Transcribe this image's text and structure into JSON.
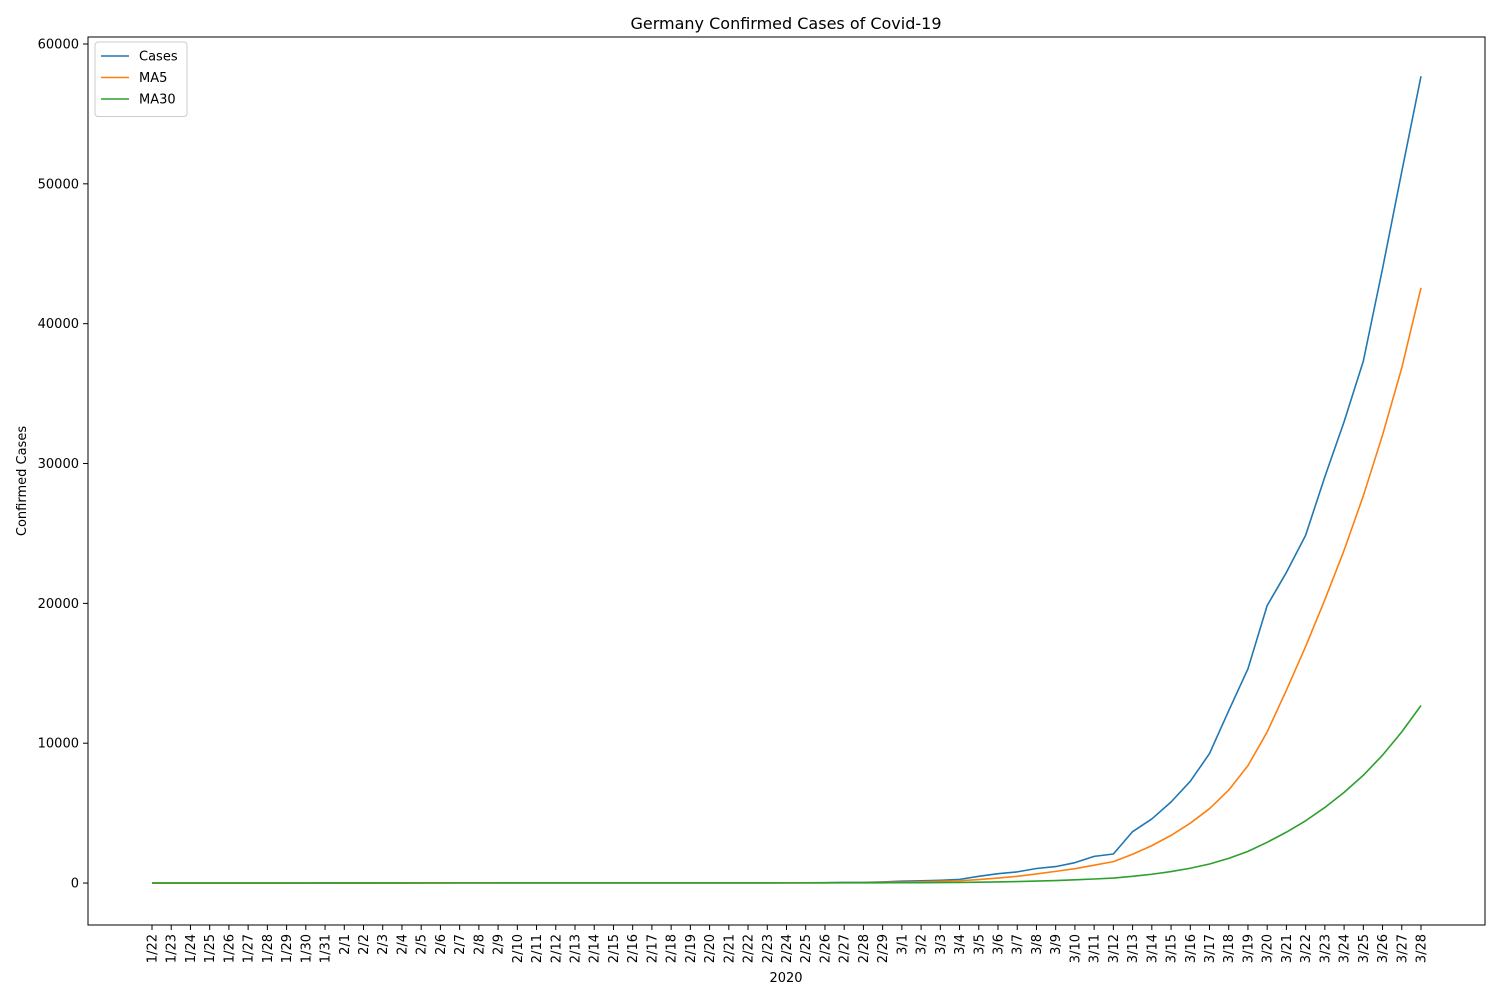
{
  "chart_data": {
    "type": "line",
    "title": "Germany Confirmed Cases of Covid-19",
    "xlabel": "2020",
    "ylabel": "Confirmed Cases",
    "ylim": [
      -3000,
      60500
    ],
    "yticks": [
      0,
      10000,
      20000,
      30000,
      40000,
      50000,
      60000
    ],
    "grid": false,
    "legend_position": "top-left",
    "categories": [
      "1/22",
      "1/23",
      "1/24",
      "1/25",
      "1/26",
      "1/27",
      "1/28",
      "1/29",
      "1/30",
      "1/31",
      "2/1",
      "2/2",
      "2/3",
      "2/4",
      "2/5",
      "2/6",
      "2/7",
      "2/8",
      "2/9",
      "2/10",
      "2/11",
      "2/12",
      "2/13",
      "2/14",
      "2/15",
      "2/16",
      "2/17",
      "2/18",
      "2/19",
      "2/20",
      "2/21",
      "2/22",
      "2/23",
      "2/24",
      "2/25",
      "2/26",
      "2/27",
      "2/28",
      "2/29",
      "3/1",
      "3/2",
      "3/3",
      "3/4",
      "3/5",
      "3/6",
      "3/7",
      "3/8",
      "3/9",
      "3/10",
      "3/11",
      "3/12",
      "3/13",
      "3/14",
      "3/15",
      "3/16",
      "3/17",
      "3/18",
      "3/19",
      "3/20",
      "3/21",
      "3/22",
      "3/23",
      "3/24",
      "3/25",
      "3/26",
      "3/27",
      "3/28"
    ],
    "series": [
      {
        "name": "Cases",
        "color": "#1f77b4",
        "values": [
          0,
          0,
          0,
          0,
          0,
          1,
          4,
          4,
          4,
          5,
          8,
          10,
          12,
          12,
          12,
          12,
          13,
          13,
          14,
          14,
          16,
          16,
          16,
          16,
          16,
          16,
          16,
          16,
          16,
          16,
          16,
          16,
          16,
          16,
          17,
          27,
          46,
          48,
          79,
          130,
          159,
          196,
          262,
          482,
          670,
          799,
          1040,
          1176,
          1457,
          1908,
          2078,
          3675,
          4585,
          5795,
          7272,
          9257,
          12327,
          15320,
          19848,
          22213,
          24873,
          29056,
          32986,
          37323,
          43938,
          50871,
          57695
        ]
      },
      {
        "name": "MA5",
        "color": "#ff7f0e",
        "values": [
          0,
          0,
          0,
          0,
          0,
          0.2,
          1,
          1.8,
          2.6,
          3.6,
          5,
          6.2,
          7.8,
          9.4,
          10.8,
          11.6,
          12.2,
          12.4,
          12.8,
          13.2,
          13.8,
          14.6,
          15.2,
          15.6,
          16,
          16,
          16,
          16,
          16,
          16,
          16,
          16,
          16,
          16,
          16.2,
          18.2,
          23.8,
          30.8,
          43.4,
          65.6,
          91.6,
          122.4,
          165.2,
          245.8,
          353.8,
          481.8,
          650.6,
          833.4,
          1028.4,
          1276,
          1531.8,
          2058.8,
          2676.6,
          3408.2,
          4281,
          5316.8,
          6647.2,
          8394.2,
          10804.8,
          13793,
          16916.2,
          20262,
          23795.6,
          27690.2,
          32035.2,
          36835.8,
          42562.6
        ]
      },
      {
        "name": "MA30",
        "color": "#2ca02c",
        "values": [
          0,
          0,
          0,
          0,
          0,
          0.03,
          0.17,
          0.3,
          0.43,
          0.6,
          0.87,
          1.2,
          1.6,
          2,
          2.4,
          2.8,
          3.23,
          3.67,
          4.13,
          4.6,
          5.13,
          5.67,
          6.2,
          6.73,
          7.27,
          7.8,
          8.33,
          8.87,
          9.4,
          9.93,
          10.47,
          11,
          11.53,
          12.07,
          12.63,
          13.53,
          15.03,
          16.6,
          19.2,
          23.47,
          28.63,
          35.03,
          43.63,
          59.4,
          81.33,
          107.53,
          141.63,
          180.17,
          227.93,
          290.43,
          358.43,
          478.8,
          628.9,
          818.57,
          1056.67,
          1359.57,
          1762.93,
          2264.3,
          2913.4,
          3640.33,
          4454.23,
          5405.23,
          6484.9,
          7706.7,
          9144.93,
          10809.73,
          12698.07
        ]
      }
    ]
  }
}
